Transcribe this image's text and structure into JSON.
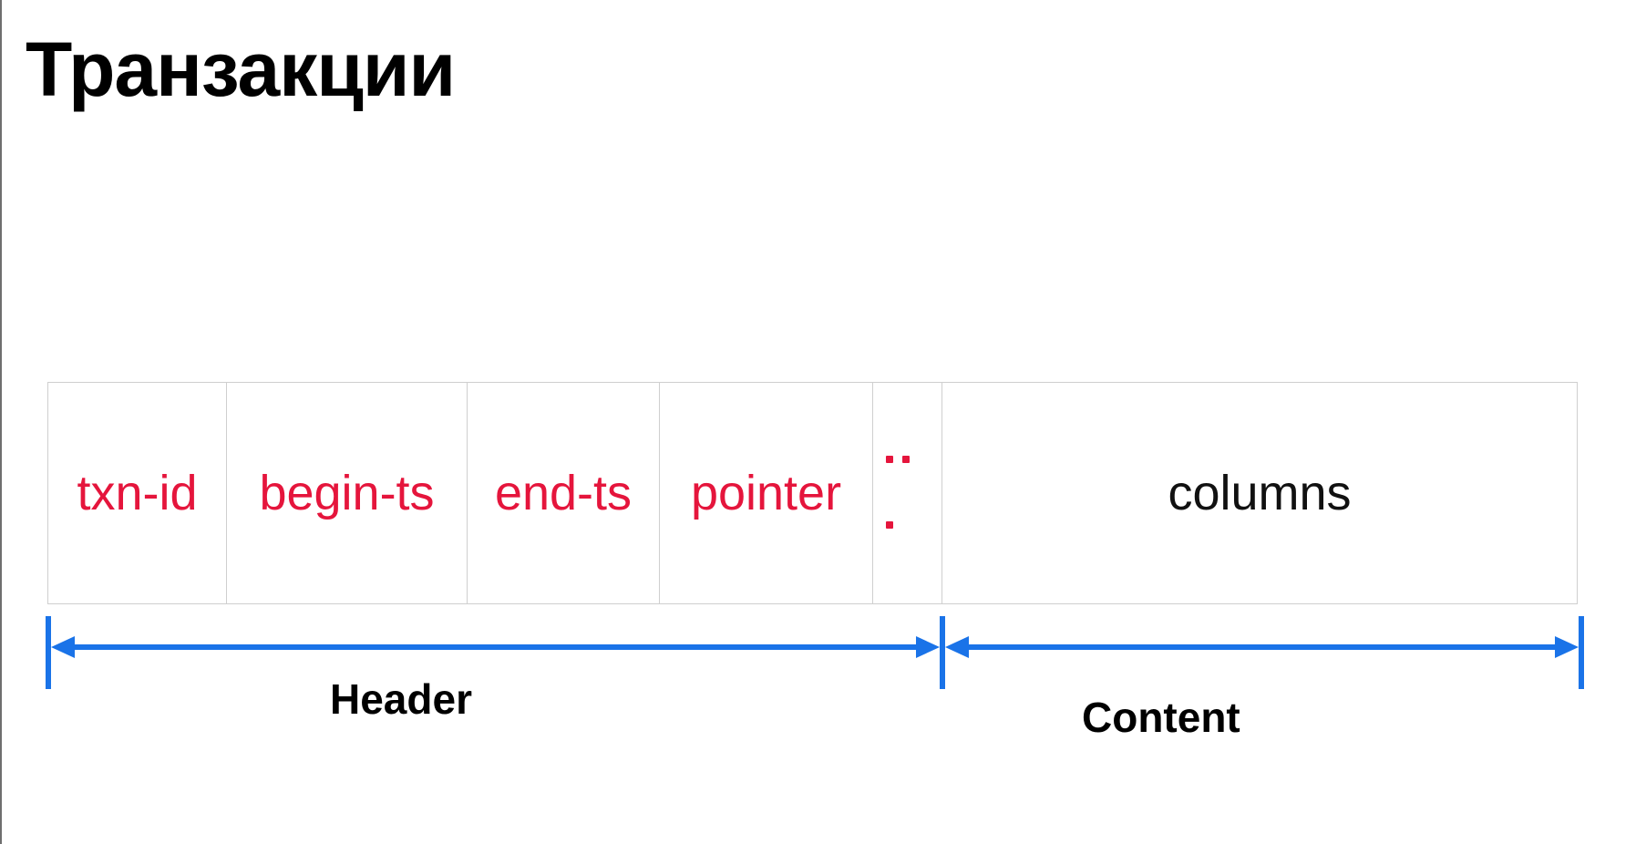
{
  "title": "Транзакции",
  "record": {
    "fields": [
      "txn-id",
      "begin-ts",
      "end-ts",
      "pointer"
    ],
    "ellipsis": "..",
    "content_field": "columns"
  },
  "spans": {
    "header_label": "Header",
    "content_label": "Content"
  },
  "colors": {
    "header_field_text": "#e5153c",
    "arrow": "#1a73e8",
    "cell_border": "#cfcfcf"
  }
}
